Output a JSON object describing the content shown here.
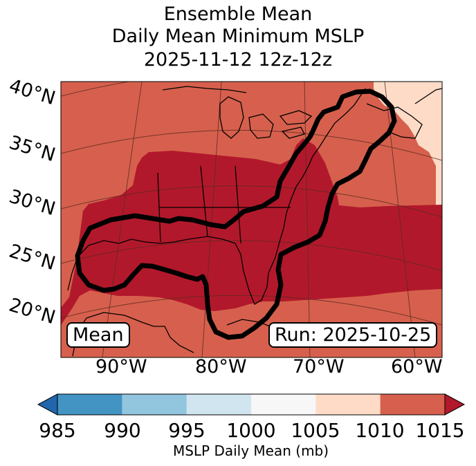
{
  "figure": {
    "title_lines": [
      "Ensemble Mean",
      "Daily Mean Minimum MSLP",
      "2025-11-12 12z-12z"
    ],
    "panel_label": "Mean",
    "run_label": "Run: 2025-10-25"
  },
  "chart_data": {
    "type": "heatmap",
    "projection": "lambert-conformal",
    "map_extent": {
      "lon_min": -98,
      "lon_max": -58,
      "lat_min": 17,
      "lat_max": 42
    },
    "lat_ticks": [
      "20°N",
      "25°N",
      "30°N",
      "35°N",
      "40°N"
    ],
    "lon_ticks": [
      "90°W",
      "80°W",
      "70°W",
      "60°W"
    ],
    "levels": [
      985,
      990,
      995,
      1000,
      1005,
      1010,
      1015
    ],
    "bin_colors": [
      "#2166ac",
      "#4393c3",
      "#92c5de",
      "#d1e5f0",
      "#f7f7f7",
      "#fddbc7",
      "#d6604d",
      "#b2182b"
    ],
    "colorbar": {
      "label": "MSLP Daily Mean (mb)",
      "ticks": [
        "985",
        "990",
        "995",
        "1000",
        "1005",
        "1010",
        "1015"
      ],
      "extend": "both"
    },
    "regions": [
      {
        "range_mb": "1010-1015",
        "description": "background across most of map"
      },
      {
        "range_mb": ">1015",
        "description": "broad band from Texas through Gulf of Mexico to Southeast US and western Atlantic"
      },
      {
        "range_mb": "1005-1010",
        "description": "northeast corner near Nova Scotia"
      }
    ],
    "contour": {
      "description": "thick black outline around Gulf Coast, Florida and US East Coast to Maine"
    }
  }
}
